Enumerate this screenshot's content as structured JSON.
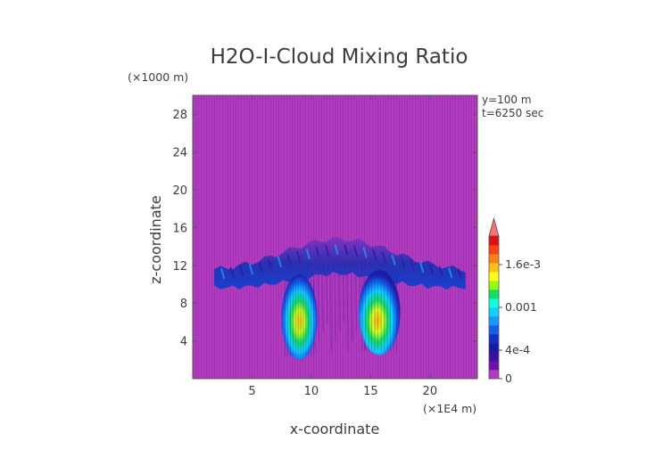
{
  "chart_data": {
    "type": "heatmap",
    "title": "H2O-I-Cloud Mixing Ratio",
    "xlabel": "x-coordinate",
    "ylabel": "z-coordinate",
    "x_unit": "(×1E4 m)",
    "y_unit": "(×1000 m)",
    "annotations": [
      "y=100 m",
      "t=6250 sec"
    ],
    "xlim": [
      0,
      24
    ],
    "ylim": [
      0,
      30
    ],
    "x_ticks": [
      5,
      10,
      15,
      20
    ],
    "y_ticks": [
      4,
      8,
      12,
      16,
      20,
      24,
      28
    ],
    "colorbar": {
      "min": 0,
      "max": 0.002,
      "tick_values": [
        0,
        0.0004,
        0.001,
        0.0016
      ],
      "tick_labels": [
        "0",
        "4e-4",
        "0.001",
        "1.6e-3"
      ],
      "colors": [
        "#b23bbf",
        "#6a0fb0",
        "#3a10a8",
        "#1a1aa8",
        "#1030c8",
        "#1060e8",
        "#1a98ff",
        "#10d0ff",
        "#10ffe0",
        "#10e060",
        "#90ff10",
        "#ffff10",
        "#ffc010",
        "#ff8010",
        "#ff4010",
        "#e01010",
        "#ff7070"
      ],
      "extend": "max"
    },
    "features": [
      {
        "name": "anvil",
        "x": [
          1.8,
          23.0
        ],
        "z": [
          9.5,
          15.0
        ],
        "level": 0.0002
      },
      {
        "name": "left-core",
        "x": [
          7.5,
          10.5
        ],
        "z": [
          2.0,
          11.0
        ],
        "peak": 0.0012
      },
      {
        "name": "right-core",
        "x": [
          14.0,
          17.5
        ],
        "z": [
          2.5,
          11.5
        ],
        "peak": 0.0013
      }
    ]
  }
}
